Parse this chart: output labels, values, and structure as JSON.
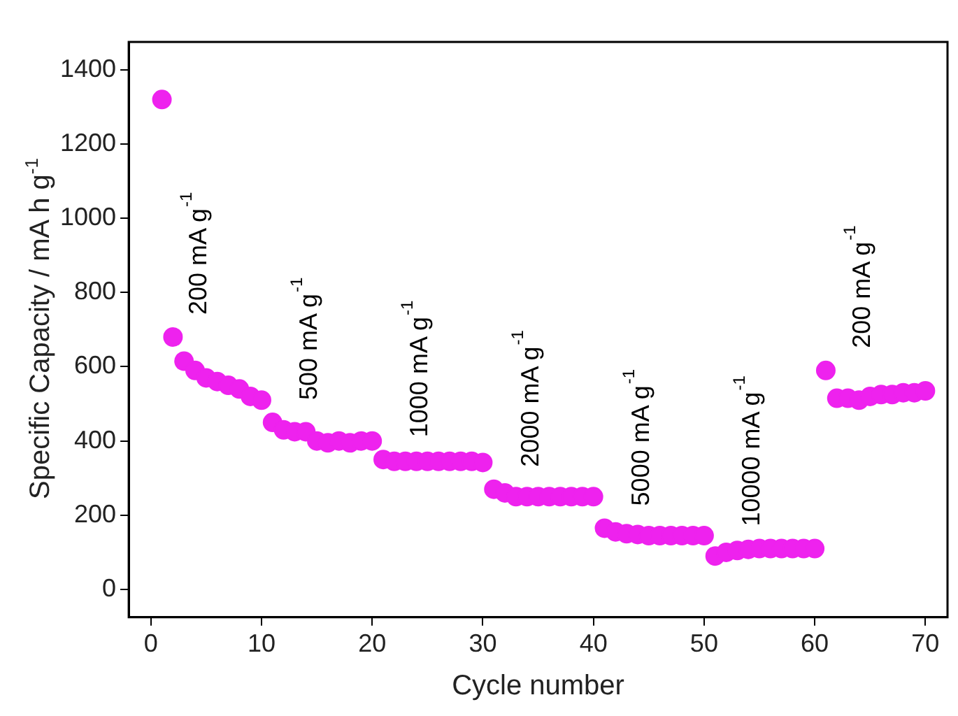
{
  "chart_data": {
    "type": "scatter",
    "xlabel": "Cycle number",
    "ylabel": "Specific Capacity / mA h g$^{-1}$",
    "x": [
      1,
      2,
      3,
      4,
      5,
      6,
      7,
      8,
      9,
      10,
      11,
      12,
      13,
      14,
      15,
      16,
      17,
      18,
      19,
      20,
      21,
      22,
      23,
      24,
      25,
      26,
      27,
      28,
      29,
      30,
      31,
      32,
      33,
      34,
      35,
      36,
      37,
      38,
      39,
      40,
      41,
      42,
      43,
      44,
      45,
      46,
      47,
      48,
      49,
      50,
      51,
      52,
      53,
      54,
      55,
      56,
      57,
      58,
      59,
      60,
      61,
      62,
      63,
      64,
      65,
      66,
      67,
      68,
      69,
      70
    ],
    "series": [
      {
        "color": "#ee22ee",
        "values": [
          1320,
          680,
          615,
          590,
          570,
          560,
          550,
          540,
          520,
          510,
          450,
          430,
          425,
          425,
          400,
          395,
          400,
          395,
          400,
          400,
          350,
          345,
          345,
          345,
          345,
          345,
          345,
          345,
          345,
          342,
          270,
          260,
          250,
          250,
          250,
          250,
          250,
          250,
          250,
          250,
          165,
          155,
          150,
          148,
          145,
          145,
          145,
          145,
          145,
          145,
          90,
          100,
          105,
          108,
          110,
          110,
          110,
          110,
          110,
          110,
          590,
          515,
          515,
          510,
          520,
          525,
          525,
          530,
          530,
          535
        ]
      }
    ],
    "marker": "circle",
    "xlim": [
      -2,
      72
    ],
    "ylim": [
      -75,
      1475
    ],
    "xticks": [
      0,
      10,
      20,
      30,
      40,
      50,
      60,
      70
    ],
    "yticks": [
      0,
      200,
      400,
      600,
      800,
      1000,
      1200,
      1400
    ],
    "grid": false,
    "legend": false,
    "annotations": [
      "200 mA g$^{-1}$",
      "500 mA g$^{-1}$",
      "1000 mA g$^{-1}$",
      "2000 mA g$^{-1}$",
      "5000 mA g$^{-1}$",
      "10000 mA g$^{-1}$",
      "200 mA g$^{-1}$"
    ]
  }
}
